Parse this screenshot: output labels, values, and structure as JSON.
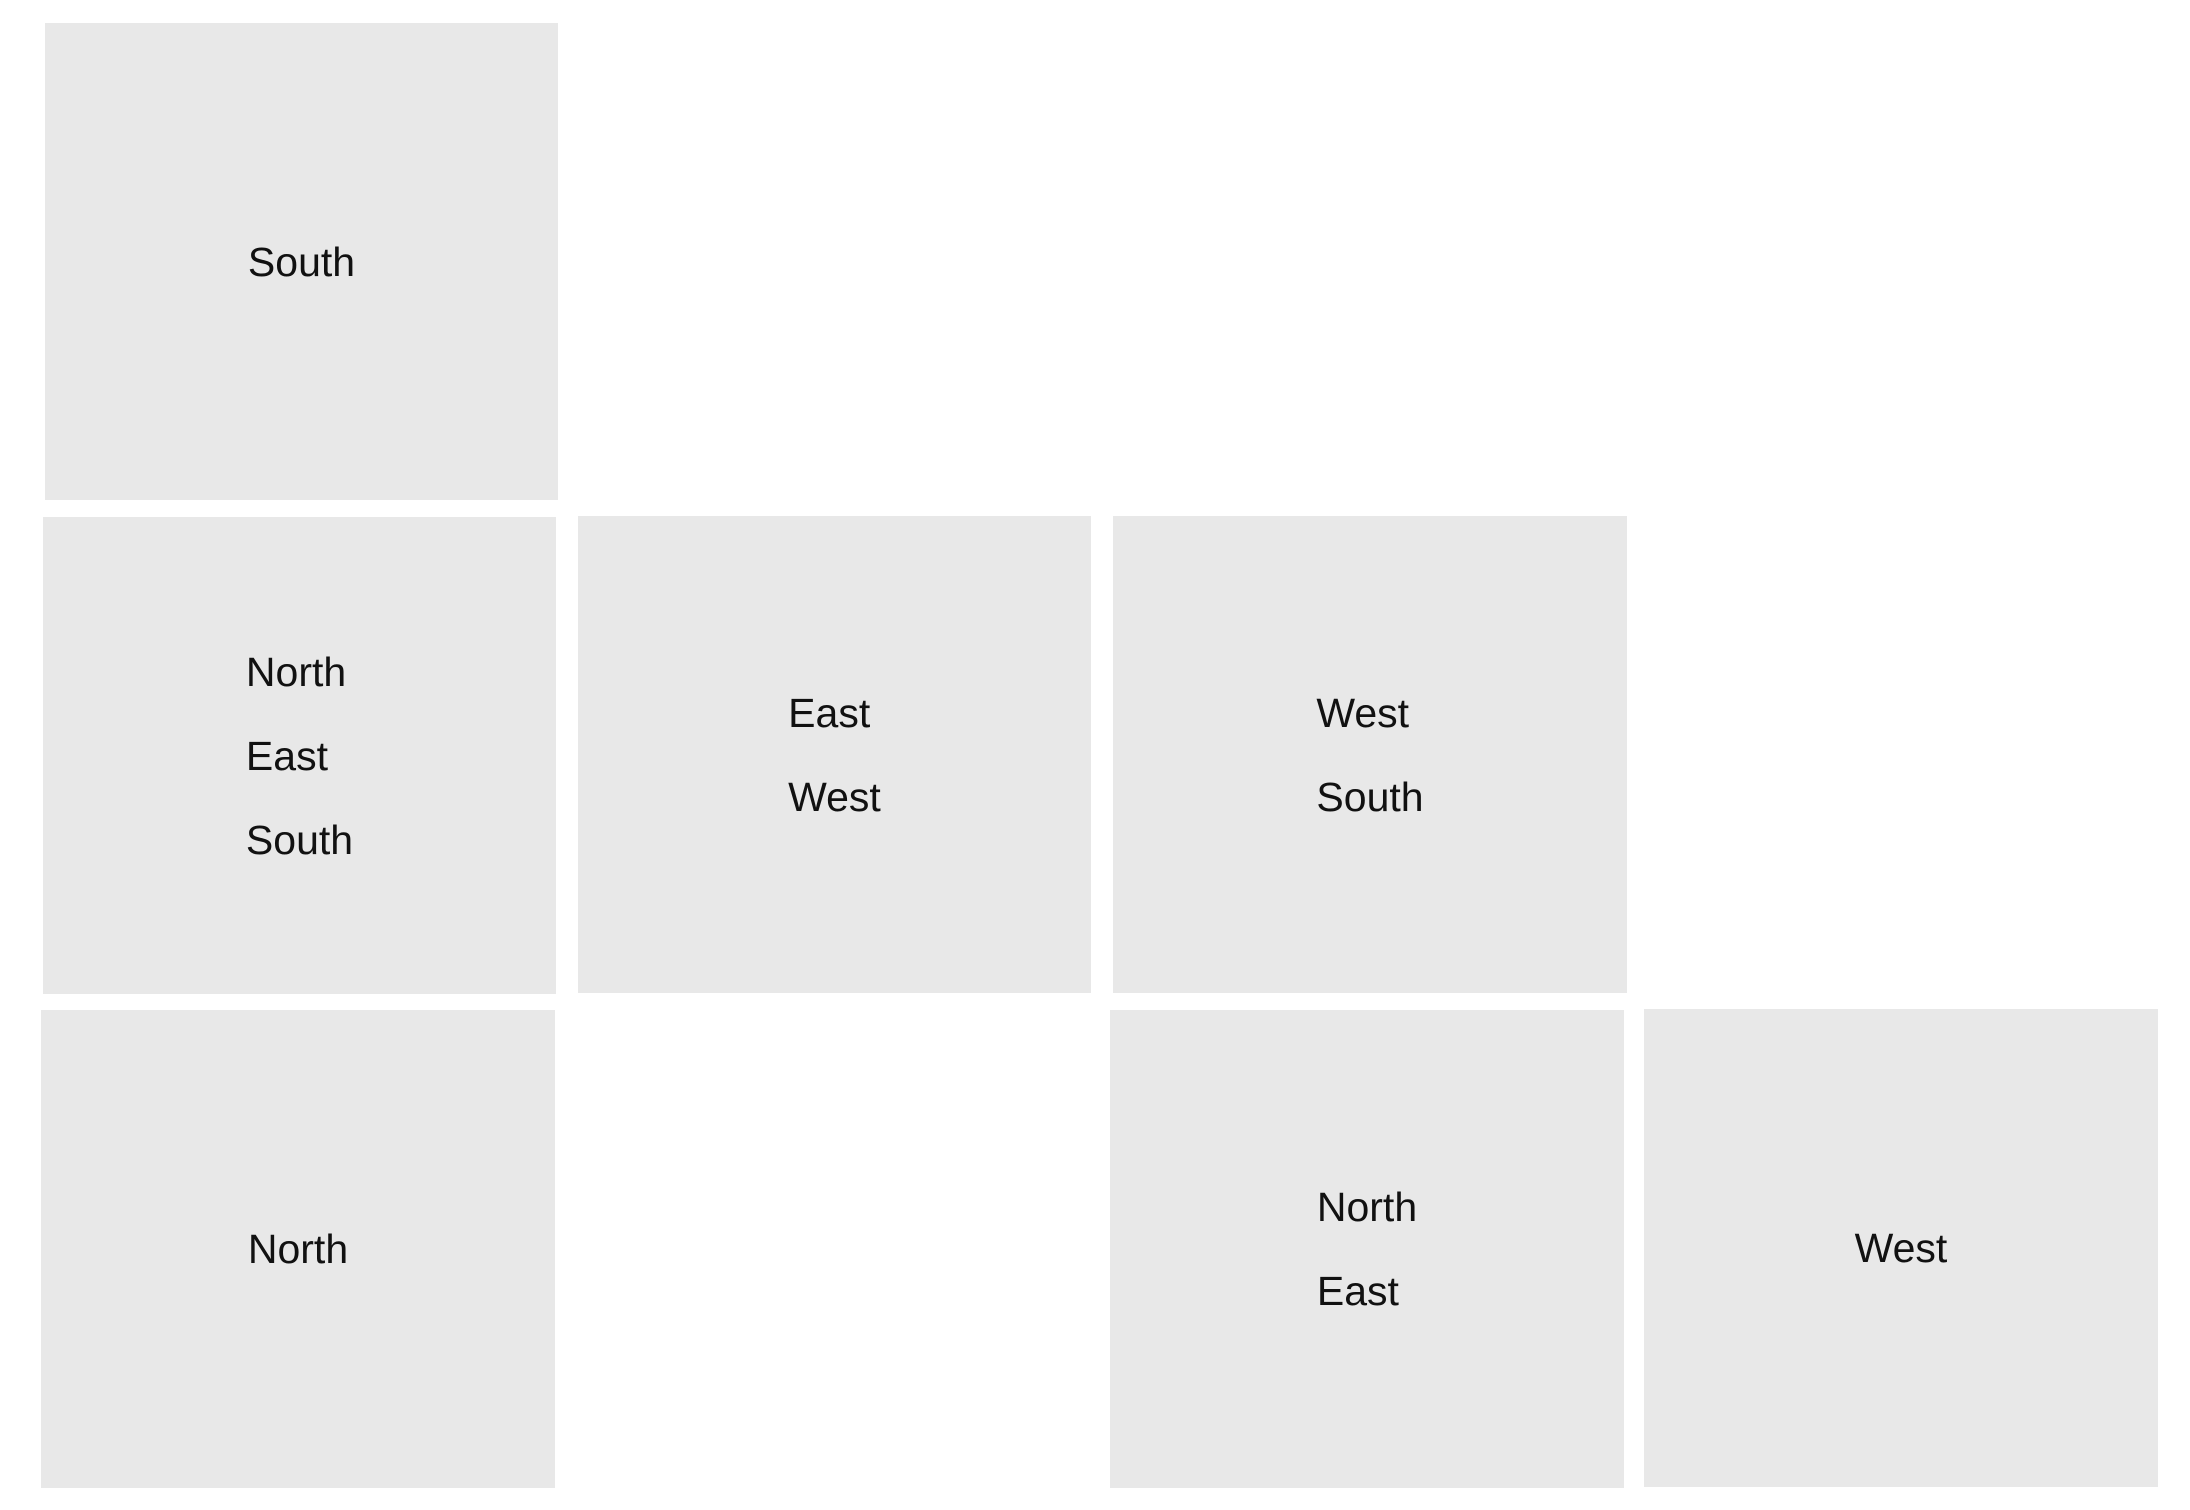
{
  "diagram": {
    "panels": [
      {
        "lines": [
          "South"
        ]
      },
      {
        "lines": [
          "North",
          "East",
          "South"
        ]
      },
      {
        "lines": [
          "East",
          "West"
        ]
      },
      {
        "lines": [
          "West",
          "South"
        ]
      },
      {
        "lines": [
          "North"
        ]
      },
      {
        "lines": [
          "North",
          "East"
        ]
      },
      {
        "lines": [
          "West"
        ]
      }
    ],
    "colors": {
      "panel_fill": "#e8e8e8",
      "text": "#111111",
      "background": "#ffffff"
    }
  }
}
